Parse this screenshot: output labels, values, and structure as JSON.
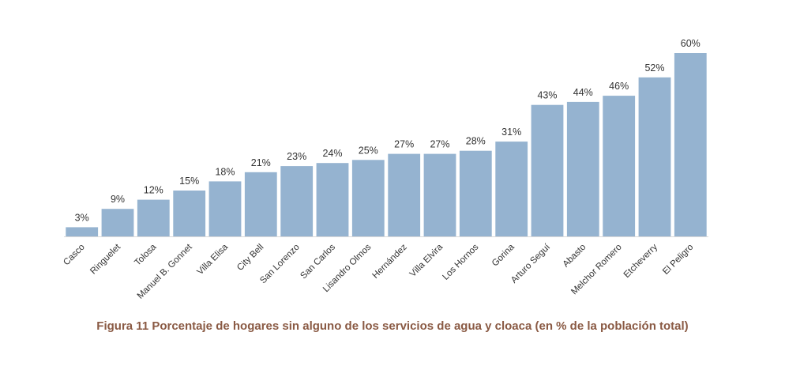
{
  "chart_data": {
    "type": "bar",
    "categories": [
      "Casco",
      "Ringuelet",
      "Tolosa",
      "Manuel B. Gonnet",
      "Villa Elisa",
      "City Bell",
      "San Lorenzo",
      "San Carlos",
      "Lisandro Olmos",
      "Hernández",
      "Villa Elvira",
      "Los Hornos",
      "Gorina",
      "Arturo Seguí",
      "Abasto",
      "Melchor Romero",
      "Etcheverry",
      "El Peligro"
    ],
    "values": [
      3,
      9,
      12,
      15,
      18,
      21,
      23,
      24,
      25,
      27,
      27,
      28,
      31,
      43,
      44,
      46,
      52,
      60
    ],
    "value_labels": [
      "3%",
      "9%",
      "12%",
      "15%",
      "18%",
      "21%",
      "23%",
      "24%",
      "25%",
      "27%",
      "27%",
      "28%",
      "31%",
      "43%",
      "44%",
      "46%",
      "52%",
      "60%"
    ],
    "ylim": [
      0,
      60
    ],
    "grid": false,
    "legend": "none",
    "colors": {
      "bar": "#95b3d0",
      "caption": "#8a5a44"
    }
  },
  "caption": "Figura 11 Porcentaje de hogares sin alguno de los servicios de agua y cloaca (en % de la población total)"
}
